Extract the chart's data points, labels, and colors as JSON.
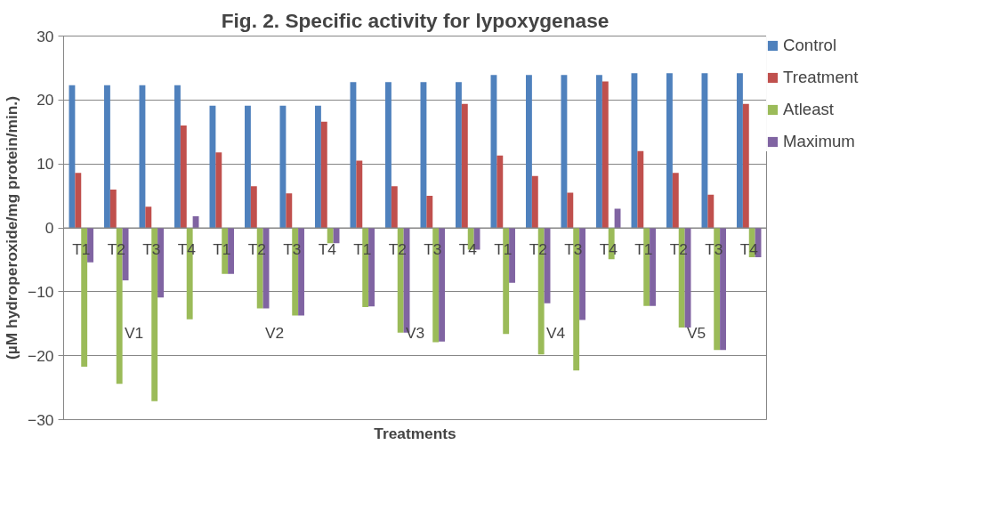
{
  "chart_data": {
    "type": "bar",
    "title": "Fig. 2. Specific activity for lypoxygenase",
    "xlabel": "Treatments",
    "ylabel": "(µM hydroperoxide/mg protein/min.)",
    "categories": [
      "T1",
      "T2",
      "T3",
      "T4",
      "T1",
      "T2",
      "T3",
      "T4",
      "T1",
      "T2",
      "T3",
      "T4",
      "T1",
      "T2",
      "T3",
      "T4",
      "T1",
      "T2",
      "T3",
      "T4"
    ],
    "annotations": [
      "V1",
      "V2",
      "V3",
      "V4",
      "V5"
    ],
    "series": [
      {
        "name": "Control",
        "color": "#4f81bd",
        "values": [
          22.3,
          22.3,
          22.3,
          22.3,
          19.1,
          19.1,
          19.1,
          19.1,
          22.8,
          22.8,
          22.8,
          22.8,
          23.9,
          23.9,
          23.9,
          23.9,
          24.2,
          24.2,
          24.2,
          24.2
        ]
      },
      {
        "name": "Treatment",
        "color": "#c0504d",
        "values": [
          8.6,
          6.0,
          3.3,
          16.0,
          11.8,
          6.5,
          5.4,
          16.6,
          10.5,
          6.5,
          5.0,
          19.4,
          11.3,
          8.1,
          5.5,
          22.9,
          12.0,
          8.6,
          5.2,
          19.4
        ]
      },
      {
        "name": "Atleast",
        "color": "#9bbb59",
        "values": [
          -21.7,
          -24.4,
          -27.1,
          -14.3,
          -7.2,
          -12.6,
          -13.7,
          -2.4,
          -12.4,
          -16.4,
          -17.9,
          -3.4,
          -16.6,
          -19.8,
          -22.3,
          -4.9,
          -12.2,
          -15.6,
          -19.1,
          -4.6
        ]
      },
      {
        "name": "Maximum",
        "color": "#8064a2",
        "values": [
          -5.4,
          -8.2,
          -10.9,
          1.8,
          -7.2,
          -12.6,
          -13.7,
          -2.4,
          -12.3,
          -16.4,
          -17.8,
          -3.4,
          -8.6,
          -11.8,
          -14.4,
          3.0,
          -12.2,
          -15.6,
          -19.1,
          -4.6
        ]
      }
    ],
    "ylim": [
      -30,
      30
    ],
    "yticks": [
      -30,
      -20,
      -10,
      0,
      10,
      20,
      30
    ],
    "grid": "y",
    "legend": "right"
  }
}
